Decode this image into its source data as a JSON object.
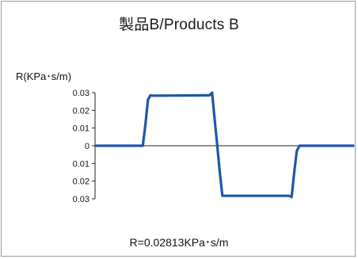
{
  "chart_data": {
    "type": "line",
    "title": "製品B/Products B",
    "ylabel": "R(KPa･s/m)",
    "xlabel": "",
    "footer": "R=0.02813KPa･s/m",
    "ylim": [
      -0.035,
      0.035
    ],
    "yticks": [
      {
        "value": 0.03,
        "label": "0.03"
      },
      {
        "value": 0.02,
        "label": "0.02"
      },
      {
        "value": 0.01,
        "label": "0.01"
      },
      {
        "value": 0,
        "label": "0"
      },
      {
        "value": -0.01,
        "label": "0.01"
      },
      {
        "value": -0.02,
        "label": "0.02"
      },
      {
        "value": -0.03,
        "label": "0.03"
      }
    ],
    "xlim": [
      0,
      100
    ],
    "series": [
      {
        "color": "#1f57a8",
        "x": [
          0,
          12,
          18,
          19,
          20,
          21,
          22,
          44,
          45,
          46,
          47,
          48,
          49,
          75,
          76,
          77,
          78,
          79,
          80,
          100
        ],
        "y": [
          0,
          0,
          0,
          0.012,
          0.026,
          0.0285,
          0.0283,
          0.0285,
          0.03,
          0.015,
          0.0,
          -0.015,
          -0.0283,
          -0.0283,
          -0.029,
          -0.015,
          -0.003,
          0.0,
          0.0,
          0.0
        ]
      }
    ],
    "grid": false,
    "legend": "none"
  }
}
